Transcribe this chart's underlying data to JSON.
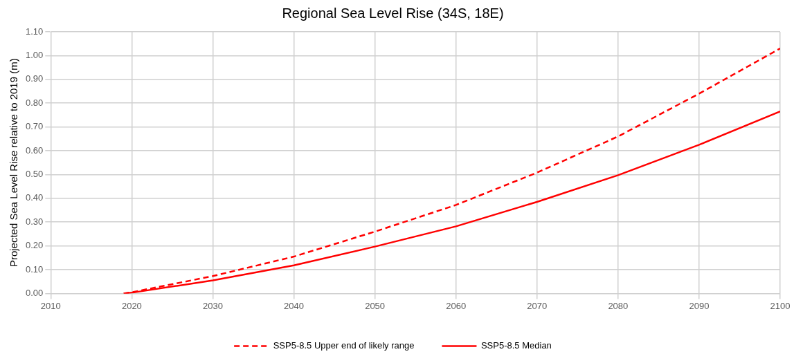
{
  "chart_data": {
    "type": "line",
    "title": "Regional Sea Level Rise (34S, 18E)",
    "ylabel": "Projected Sea Level Rise relative to 2019 (m)",
    "x": [
      2019,
      2020,
      2030,
      2040,
      2050,
      2060,
      2070,
      2080,
      2090,
      2100
    ],
    "series": [
      {
        "name": "SSP5-8.5 Upper end of likely range",
        "color": "#ff0000",
        "line_style": "dashed",
        "values": [
          0,
          0.005,
          0.073,
          0.155,
          0.26,
          0.372,
          0.508,
          0.66,
          0.84,
          1.03
        ]
      },
      {
        "name": "SSP5-8.5 Median",
        "color": "#ff0000",
        "line_style": "solid",
        "values": [
          0,
          0.003,
          0.055,
          0.118,
          0.197,
          0.282,
          0.385,
          0.497,
          0.625,
          0.765
        ]
      }
    ],
    "xlim": [
      2010,
      2100
    ],
    "xticks": [
      2010,
      2020,
      2030,
      2040,
      2050,
      2060,
      2070,
      2080,
      2090,
      2100
    ],
    "ylim": [
      0,
      1.1
    ],
    "yticks": [
      {
        "value": 0,
        "label": "0.00"
      },
      {
        "value": 0.1,
        "label": "0.10"
      },
      {
        "value": 0.2,
        "label": "0.20"
      },
      {
        "value": 0.3,
        "label": "0.30"
      },
      {
        "value": 0.4,
        "label": "0.40"
      },
      {
        "value": 0.5,
        "label": "0.50"
      },
      {
        "value": 0.6,
        "label": "0.60"
      },
      {
        "value": 0.7,
        "label": "0.70"
      },
      {
        "value": 0.8,
        "label": "0.80"
      },
      {
        "value": 0.9,
        "label": "0.90"
      },
      {
        "value": 1.0,
        "label": "1.00"
      },
      {
        "value": 1.1,
        "label": "1.10"
      }
    ],
    "grid": true,
    "legend": "bottom",
    "marker": "none"
  }
}
